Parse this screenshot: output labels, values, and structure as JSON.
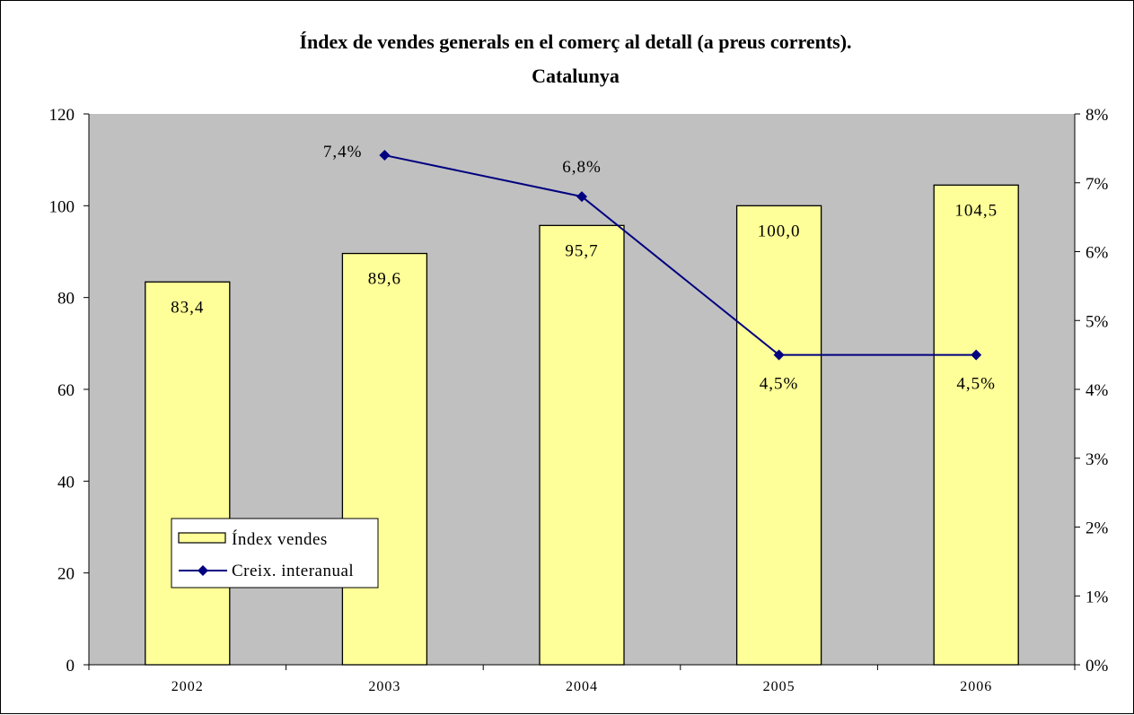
{
  "chart_data": {
    "type": "bar",
    "title": "Índex de vendes generals en el comerç al detall (a preus corrents).",
    "subtitle": "Catalunya",
    "categories": [
      "2002",
      "2003",
      "2004",
      "2005",
      "2006"
    ],
    "series": [
      {
        "name": "Índex vendes",
        "type": "bar",
        "axis": "left",
        "values": [
          83.4,
          89.6,
          95.7,
          100.0,
          104.5
        ],
        "labels": [
          "83,4",
          "89,6",
          "95,7",
          "100,0",
          "104,5"
        ],
        "color": "#ffff99"
      },
      {
        "name": "Creix. interanual",
        "type": "line",
        "axis": "right",
        "values": [
          null,
          7.4,
          6.8,
          4.5,
          4.5
        ],
        "labels": [
          "",
          "7,4%",
          "6,8%",
          "4,5%",
          "4,5%"
        ],
        "color": "#000080"
      }
    ],
    "y_left": {
      "ylim": [
        0,
        120
      ],
      "ticks": [
        "0",
        "20",
        "40",
        "60",
        "80",
        "100",
        "120"
      ]
    },
    "y_right": {
      "ylim": [
        0,
        8
      ],
      "ticks": [
        "0%",
        "1%",
        "2%",
        "3%",
        "4%",
        "5%",
        "6%",
        "7%",
        "8%"
      ]
    },
    "plot_background": "#c0c0c0",
    "grid": false,
    "legend": "bottom-left"
  }
}
